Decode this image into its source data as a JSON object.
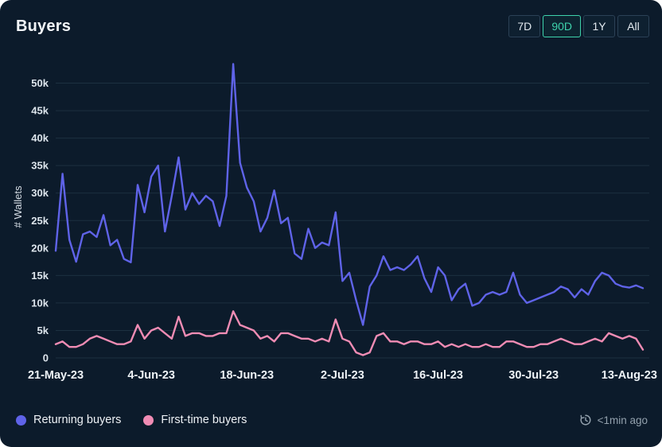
{
  "header": {
    "title": "Buyers"
  },
  "time_range": {
    "options": [
      "7D",
      "90D",
      "1Y",
      "All"
    ],
    "selected": "90D"
  },
  "legend": {
    "items": [
      {
        "label": "Returning buyers",
        "color": "#5f63e8"
      },
      {
        "label": "First-time buyers",
        "color": "#f08cb4"
      }
    ]
  },
  "footer": {
    "updated": "<1min ago",
    "icon": "history-refresh-icon"
  },
  "colors": {
    "background": "#0c1b2b",
    "accent_selected": "#3ed3ac",
    "grid": "#1c3040",
    "axis_text": "#e8eef4"
  },
  "chart_data": {
    "type": "line",
    "title": "Buyers",
    "xlabel": "",
    "ylabel": "# Wallets",
    "ylim": [
      0,
      55000
    ],
    "grid": true,
    "legend_position": "bottom-left",
    "yticks": [
      0,
      5000,
      10000,
      15000,
      20000,
      25000,
      30000,
      35000,
      40000,
      45000,
      50000
    ],
    "ytick_labels": [
      "0",
      "5k",
      "10k",
      "15k",
      "20k",
      "25k",
      "30k",
      "35k",
      "40k",
      "45k",
      "50k"
    ],
    "xtick_labels": [
      "21-May-23",
      "4-Jun-23",
      "18-Jun-23",
      "2-Jul-23",
      "16-Jul-23",
      "30-Jul-23",
      "13-Aug-23"
    ],
    "xtick_positions": [
      0,
      14,
      28,
      42,
      56,
      70,
      84
    ],
    "x_unit": "day",
    "series": [
      {
        "name": "Returning buyers",
        "color": "#5f63e8",
        "values": [
          19500,
          33500,
          21500,
          17500,
          22500,
          23000,
          22000,
          26000,
          20500,
          21500,
          18000,
          17400,
          31500,
          26500,
          33000,
          35000,
          23000,
          29500,
          36500,
          27000,
          30000,
          28000,
          29500,
          28500,
          24000,
          29500,
          53500,
          35500,
          31000,
          28500,
          23000,
          25500,
          30500,
          24500,
          25500,
          19000,
          18000,
          23500,
          20000,
          21000,
          20500,
          26500,
          14000,
          15500,
          10500,
          6000,
          13000,
          15000,
          18500,
          16000,
          16500,
          16000,
          17000,
          18500,
          14500,
          12000,
          16500,
          15000,
          10500,
          12500,
          13500,
          9500,
          10000,
          11500,
          12000,
          11500,
          12000,
          15500,
          11500,
          10000,
          10500,
          11000,
          11500,
          12000,
          13000,
          12500,
          11000,
          12500,
          11500,
          14000,
          15500,
          15000,
          13500,
          13000,
          12800,
          13200,
          12700
        ]
      },
      {
        "name": "First-time buyers",
        "color": "#f08cb4",
        "values": [
          2500,
          3000,
          2000,
          2000,
          2500,
          3500,
          4000,
          3500,
          3000,
          2500,
          2500,
          3000,
          6000,
          3500,
          5000,
          5500,
          4500,
          3500,
          7500,
          4000,
          4500,
          4500,
          4000,
          4000,
          4500,
          4500,
          8500,
          6000,
          5500,
          5000,
          3500,
          4000,
          3000,
          4500,
          4500,
          4000,
          3500,
          3500,
          3000,
          3500,
          3000,
          7000,
          3500,
          3000,
          1000,
          500,
          1000,
          4000,
          4500,
          3000,
          3000,
          2500,
          3000,
          3000,
          2500,
          2500,
          3000,
          2000,
          2500,
          2000,
          2500,
          2000,
          2000,
          2500,
          2000,
          2000,
          3000,
          3000,
          2500,
          2000,
          2000,
          2500,
          2500,
          3000,
          3500,
          3000,
          2500,
          2500,
          3000,
          3500,
          3000,
          4500,
          4000,
          3500,
          4000,
          3500,
          1500
        ]
      }
    ]
  }
}
